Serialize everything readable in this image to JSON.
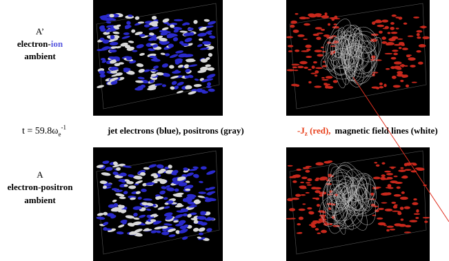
{
  "top_label": {
    "name": "A’",
    "line1_a": "electron-",
    "line1_b": "ion",
    "line2": "ambient"
  },
  "bottom_label": {
    "name": "A",
    "line1": "electron-positron",
    "line2": "ambient"
  },
  "caption": {
    "time_a": "t = 59.8ω",
    "time_sub": "e",
    "time_sup": "-1",
    "left": "jet electrons (blue), positrons (gray)",
    "right_a": "-J",
    "right_sub": "z",
    "right_b": " (red),",
    "right_c": "magnetic field lines (white)"
  }
}
